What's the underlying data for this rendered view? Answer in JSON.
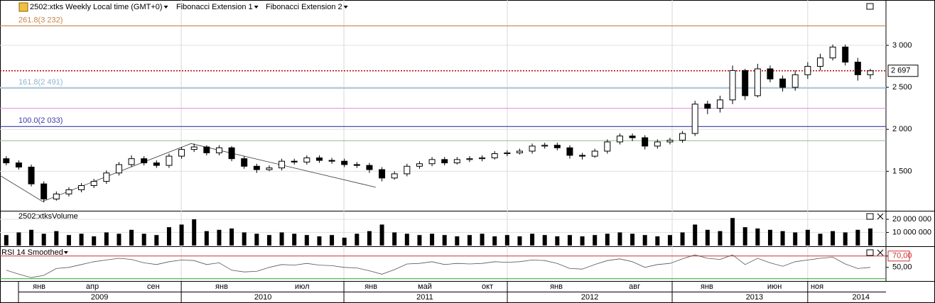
{
  "chart_data": [
    {
      "type": "candlestick",
      "title": "2502:xtks Weekly Local time (GMT+0)",
      "indicators": [
        "Fibonacci Extension 1",
        "Fibonacci Extension 2"
      ],
      "x": [
        2,
        6,
        10,
        14,
        18,
        22,
        26,
        30,
        34,
        38,
        42,
        46,
        50,
        54,
        58,
        62,
        66,
        70,
        74,
        78,
        82,
        86,
        90,
        94,
        98,
        102,
        106,
        110,
        114,
        118,
        122,
        126,
        130,
        134,
        138,
        142,
        146,
        150,
        154,
        158,
        162,
        166,
        170,
        174,
        178,
        182,
        186,
        190,
        194,
        198,
        202,
        206,
        210,
        214,
        218,
        222,
        226,
        230,
        234,
        238,
        242,
        246,
        250,
        254,
        258,
        262,
        266,
        270,
        274,
        278
      ],
      "open": [
        1650,
        1600,
        1550,
        1350,
        1170,
        1230,
        1280,
        1330,
        1380,
        1480,
        1580,
        1650,
        1600,
        1570,
        1680,
        1760,
        1790,
        1720,
        1780,
        1650,
        1560,
        1520,
        1540,
        1620,
        1610,
        1660,
        1630,
        1620,
        1580,
        1570,
        1520,
        1420,
        1470,
        1560,
        1590,
        1640,
        1600,
        1640,
        1650,
        1660,
        1710,
        1720,
        1740,
        1800,
        1810,
        1780,
        1690,
        1680,
        1740,
        1850,
        1920,
        1900,
        1800,
        1850,
        1870,
        1950,
        2300,
        2250,
        2350,
        2700,
        2400,
        2720,
        2600,
        2500,
        2650,
        2750,
        2850,
        2980,
        2800,
        2650
      ],
      "high": [
        1680,
        1630,
        1580,
        1380,
        1260,
        1310,
        1360,
        1410,
        1510,
        1610,
        1690,
        1680,
        1630,
        1710,
        1790,
        1830,
        1810,
        1810,
        1800,
        1680,
        1590,
        1570,
        1650,
        1650,
        1690,
        1690,
        1660,
        1650,
        1610,
        1600,
        1550,
        1500,
        1590,
        1620,
        1670,
        1670,
        1670,
        1680,
        1690,
        1740,
        1750,
        1770,
        1830,
        1840,
        1840,
        1810,
        1720,
        1770,
        1880,
        1950,
        1950,
        1930,
        1880,
        1900,
        1980,
        2340,
        2340,
        2400,
        2760,
        2720,
        2780,
        2760,
        2640,
        2700,
        2800,
        2900,
        3010,
        3010,
        2850,
        2720
      ],
      "low": [
        1570,
        1520,
        1320,
        1130,
        1150,
        1200,
        1250,
        1300,
        1350,
        1450,
        1550,
        1570,
        1540,
        1540,
        1650,
        1730,
        1690,
        1690,
        1620,
        1530,
        1480,
        1500,
        1510,
        1580,
        1580,
        1600,
        1590,
        1550,
        1540,
        1480,
        1380,
        1400,
        1440,
        1530,
        1560,
        1570,
        1580,
        1610,
        1620,
        1640,
        1680,
        1700,
        1710,
        1770,
        1750,
        1650,
        1640,
        1660,
        1710,
        1820,
        1860,
        1760,
        1770,
        1820,
        1840,
        1920,
        2180,
        2200,
        2300,
        2350,
        2380,
        2560,
        2450,
        2460,
        2600,
        2700,
        2820,
        2760,
        2580,
        2600
      ],
      "close": [
        1600,
        1550,
        1350,
        1170,
        1230,
        1280,
        1330,
        1380,
        1480,
        1580,
        1650,
        1600,
        1570,
        1680,
        1760,
        1790,
        1720,
        1780,
        1650,
        1560,
        1520,
        1540,
        1620,
        1610,
        1660,
        1630,
        1620,
        1580,
        1570,
        1520,
        1420,
        1470,
        1560,
        1590,
        1640,
        1600,
        1640,
        1650,
        1660,
        1710,
        1720,
        1740,
        1800,
        1810,
        1780,
        1690,
        1680,
        1740,
        1850,
        1920,
        1900,
        1800,
        1850,
        1870,
        1950,
        2300,
        2250,
        2350,
        2700,
        2400,
        2720,
        2600,
        2500,
        2650,
        2750,
        2850,
        2980,
        2800,
        2650,
        2697
      ],
      "xlim": [
        0,
        283
      ],
      "ylim": [
        1030,
        3540
      ],
      "yticks": [
        {
          "value": 3000,
          "label": "3 000"
        },
        {
          "value": 2500,
          "label": "2 500"
        },
        {
          "value": 2000,
          "label": "2 000"
        },
        {
          "value": 1500,
          "label": "1 500"
        }
      ],
      "month_ticks": [
        {
          "value": 12.5,
          "label": "янв"
        },
        {
          "value": 29.5,
          "label": "апр"
        },
        {
          "value": 49,
          "label": "сен"
        },
        {
          "value": 70.8,
          "label": "янв"
        },
        {
          "value": 96.5,
          "label": "июл"
        },
        {
          "value": 118.5,
          "label": "янв"
        },
        {
          "value": 135.7,
          "label": "май"
        },
        {
          "value": 155.7,
          "label": "окт"
        },
        {
          "value": 177.7,
          "label": "янв"
        },
        {
          "value": 202.7,
          "label": "авг"
        },
        {
          "value": 225.8,
          "label": "янв"
        },
        {
          "value": 247.4,
          "label": "июн"
        },
        {
          "value": 261,
          "label": "ноя"
        }
      ],
      "year_ticks": [
        {
          "value": 31.8,
          "label": "2009"
        },
        {
          "value": 84,
          "label": "2010"
        },
        {
          "value": 135.7,
          "label": "2011"
        },
        {
          "value": 188.4,
          "label": "2012"
        },
        {
          "value": 241,
          "label": "2013"
        },
        {
          "value": 275,
          "label": "2014"
        }
      ],
      "fib_levels": [
        {
          "value": 3232,
          "label": "261.8(3 232)",
          "color": "#c8844a"
        },
        {
          "value": 2491,
          "label": "161.8(2 491)",
          "color": "#8fb4d0"
        },
        {
          "value": 2033,
          "label": "100.0(2 033)",
          "color": "#3a3ab0"
        }
      ],
      "lines": [
        {
          "value": 2250,
          "color": "#e98ad8"
        },
        {
          "value": 1865,
          "color": "#8fbf8f"
        }
      ],
      "fib_points": {
        "x": [
          0,
          13.6,
          61,
          120
        ],
        "y": [
          1450,
          1140,
          1830,
          1310
        ]
      },
      "last": {
        "value": 2697,
        "label": "2 697"
      },
      "up_color": "#ffffff",
      "down_color": "#000000"
    },
    {
      "type": "volume",
      "title": "2502:xtksVolume",
      "values": [
        8000000,
        10000000,
        12000000,
        9000000,
        11000000,
        8000000,
        9000000,
        7000000,
        10000000,
        9000000,
        12000000,
        9000000,
        8000000,
        14000000,
        16000000,
        20000000,
        11000000,
        12000000,
        13000000,
        10000000,
        9000000,
        8000000,
        10000000,
        9000000,
        8000000,
        7000000,
        8000000,
        6000000,
        9000000,
        11000000,
        16000000,
        10000000,
        9000000,
        8000000,
        9000000,
        8000000,
        7000000,
        8000000,
        9000000,
        7000000,
        8000000,
        7000000,
        9000000,
        8000000,
        7000000,
        8000000,
        7000000,
        8000000,
        9000000,
        10000000,
        9000000,
        8000000,
        7000000,
        8000000,
        10000000,
        16000000,
        12000000,
        11000000,
        21000000,
        14000000,
        13000000,
        12000000,
        11000000,
        10000000,
        12000000,
        9000000,
        11000000,
        10000000,
        12000000,
        13000000
      ],
      "ylim": [
        0,
        26000000
      ],
      "yticks": [
        {
          "value": 20000000,
          "label": "20 000 000"
        },
        {
          "value": 10000000,
          "label": "10 000 000"
        }
      ],
      "color": "#000000"
    },
    {
      "type": "line",
      "title": "RSI 14 Smoothed",
      "values": [
        45,
        38,
        32,
        36,
        48,
        50,
        55,
        60,
        63,
        66,
        64,
        58,
        55,
        60,
        63,
        62,
        55,
        58,
        45,
        42,
        43,
        50,
        55,
        54,
        57,
        54,
        53,
        50,
        49,
        44,
        38,
        46,
        56,
        57,
        60,
        55,
        57,
        56,
        57,
        60,
        59,
        60,
        63,
        62,
        57,
        48,
        47,
        55,
        62,
        65,
        60,
        50,
        55,
        57,
        65,
        72,
        66,
        64,
        72,
        55,
        66,
        58,
        52,
        60,
        63,
        66,
        68,
        56,
        48,
        50
      ],
      "ylim": [
        26,
        86
      ],
      "yticks": [
        {
          "value": 70,
          "label": "70,00"
        },
        {
          "value": 50,
          "label": "50,00"
        }
      ],
      "levels": [
        {
          "value": 70,
          "color": "#d03030"
        },
        {
          "value": 30,
          "color": "#30a030"
        }
      ],
      "color": "#555555"
    }
  ]
}
